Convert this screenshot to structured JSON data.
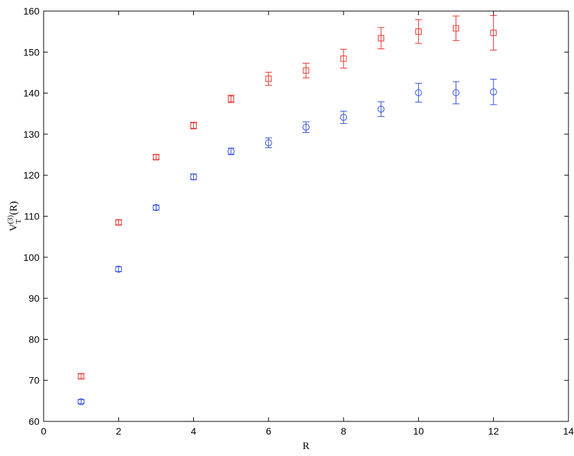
{
  "chart_data": {
    "type": "scatter",
    "title": "",
    "xlabel": "R",
    "ylabel": {
      "base": "V",
      "subscript": "T",
      "superscript": "(3)",
      "suffix": "(R)"
    },
    "xlim": [
      0,
      14
    ],
    "ylim": [
      60,
      160
    ],
    "x_ticks": [
      0,
      2,
      4,
      6,
      8,
      10,
      12,
      14
    ],
    "y_ticks": [
      60,
      70,
      80,
      90,
      100,
      110,
      120,
      130,
      140,
      150,
      160
    ],
    "grid": false,
    "legend": false,
    "series": [
      {
        "marker": "square",
        "color": "#e8302a",
        "x": [
          1,
          2,
          3,
          4,
          5,
          6,
          7,
          8,
          9,
          10,
          11,
          12
        ],
        "y": [
          71.0,
          108.5,
          124.4,
          132.1,
          138.6,
          143.5,
          145.5,
          148.4,
          153.4,
          155.0,
          155.8,
          154.7
        ],
        "err": [
          0.6,
          0.6,
          0.6,
          0.8,
          0.9,
          1.6,
          1.8,
          2.3,
          2.6,
          2.9,
          3.0,
          4.2
        ]
      },
      {
        "marker": "circle",
        "color": "#2e4fe0",
        "x": [
          1,
          2,
          3,
          4,
          5,
          6,
          7,
          8,
          9,
          10,
          11,
          12
        ],
        "y": [
          64.8,
          97.1,
          112.1,
          119.6,
          125.8,
          127.9,
          131.7,
          134.1,
          136.1,
          140.1,
          140.1,
          140.3
        ],
        "err": [
          0.5,
          0.6,
          0.6,
          0.7,
          0.8,
          1.2,
          1.3,
          1.5,
          1.8,
          2.3,
          2.7,
          3.1
        ]
      }
    ]
  }
}
